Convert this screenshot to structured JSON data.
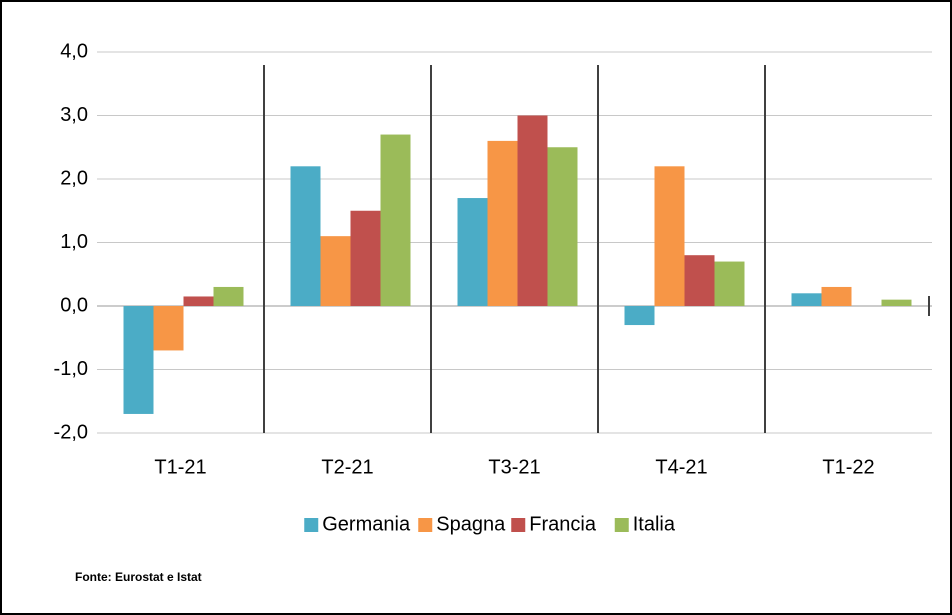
{
  "chart_data": {
    "type": "bar",
    "categories": [
      "T1-21",
      "T2-21",
      "T3-21",
      "T4-21",
      "T1-22"
    ],
    "series": [
      {
        "name": "Germania",
        "color": "#4bacc6",
        "values": [
          -1.7,
          2.2,
          1.7,
          -0.3,
          0.2
        ]
      },
      {
        "name": "Spagna",
        "color": "#f79646",
        "values": [
          -0.7,
          1.1,
          2.6,
          2.2,
          0.3
        ]
      },
      {
        "name": "Francia",
        "color": "#c0504d",
        "values": [
          0.15,
          1.5,
          3.0,
          0.8,
          0
        ]
      },
      {
        "name": "Italia",
        "color": "#9bbb59",
        "values": [
          0.3,
          2.7,
          2.5,
          0.7,
          0.1
        ]
      }
    ],
    "ylim": [
      -2,
      4
    ],
    "yticks": [
      {
        "value": -2,
        "label": "-2,0"
      },
      {
        "value": -1,
        "label": "-1,0"
      },
      {
        "value": 0,
        "label": "0,0"
      },
      {
        "value": 1,
        "label": "1,0"
      },
      {
        "value": 2,
        "label": "2,0"
      },
      {
        "value": 3,
        "label": "3,0"
      },
      {
        "value": 4,
        "label": "4,0"
      }
    ],
    "grid": true,
    "legend": "bottom",
    "source": "Fonte: Eurostat e Istat"
  }
}
